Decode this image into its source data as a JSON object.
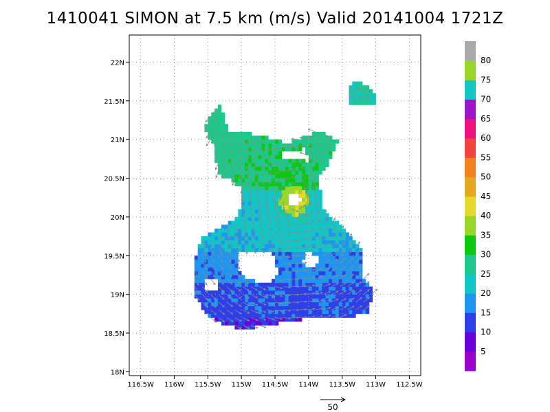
{
  "title": "1410041 SIMON at 7.5 km (m/s) Valid 20141004 1721Z",
  "chart_data": {
    "type": "heatmap",
    "title": "1410041 SIMON at 7.5 km (m/s) Valid 20141004 1721Z",
    "xlabel": "",
    "ylabel": "",
    "xlim": [
      -116.67,
      -112.33
    ],
    "ylim": [
      17.95,
      22.35
    ],
    "x_ticks": [
      -116.5,
      -116,
      -115.5,
      -115,
      -114.5,
      -114,
      -113.5,
      -113,
      -112.5
    ],
    "x_tick_labels": [
      "116.5W",
      "116W",
      "115.5W",
      "115W",
      "114.5W",
      "114W",
      "113.5W",
      "113W",
      "112.5W"
    ],
    "y_ticks": [
      18,
      18.5,
      19,
      19.5,
      20,
      20.5,
      21,
      21.5,
      22
    ],
    "y_tick_labels": [
      "18N",
      "18.5N",
      "19N",
      "19.5N",
      "20N",
      "20.5N",
      "21N",
      "21.5N",
      "22N"
    ],
    "grid": true,
    "storm_center": [
      -114.22,
      20.22
    ],
    "colorbar": {
      "levels": [
        5,
        10,
        15,
        20,
        25,
        30,
        35,
        40,
        45,
        50,
        55,
        60,
        65,
        70,
        75,
        80
      ],
      "colors": [
        "#9900cc",
        "#6a00d8",
        "#2e3fe8",
        "#1e96f0",
        "#12c6c6",
        "#1ec88c",
        "#0ec80e",
        "#9ad62a",
        "#e6d82c",
        "#e6a822",
        "#f08220",
        "#f04440",
        "#f0127c",
        "#9c14c8",
        "#14c6c6",
        "#9ad62a",
        "#aaaaaa"
      ]
    },
    "vector_reference": {
      "label": "50",
      "value": 50
    }
  }
}
